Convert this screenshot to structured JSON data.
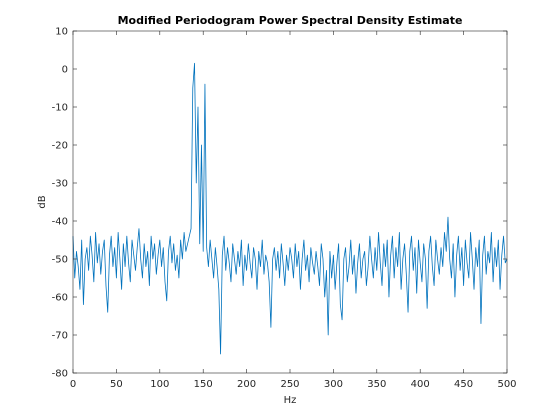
{
  "chart_data": {
    "type": "line",
    "title": "Modified Periodogram Power Spectral Density Estimate",
    "xlabel": "Hz",
    "ylabel": "dB",
    "color": "#0072bd",
    "xlim": [
      0,
      500
    ],
    "xticks": [
      0,
      50,
      100,
      150,
      200,
      250,
      300,
      350,
      400,
      450,
      500
    ],
    "ylim": [
      -80,
      10
    ],
    "yticks": [
      -80,
      -70,
      -60,
      -50,
      -40,
      -30,
      -20,
      -10,
      0,
      10
    ],
    "x": [
      0,
      2,
      4,
      6,
      8,
      10,
      12,
      14,
      16,
      18,
      20,
      22,
      24,
      26,
      28,
      30,
      32,
      34,
      36,
      38,
      40,
      42,
      44,
      46,
      48,
      50,
      52,
      54,
      56,
      58,
      60,
      62,
      64,
      66,
      68,
      70,
      72,
      74,
      76,
      78,
      80,
      82,
      84,
      86,
      88,
      90,
      92,
      94,
      96,
      98,
      100,
      102,
      104,
      106,
      108,
      110,
      112,
      114,
      116,
      118,
      120,
      122,
      124,
      126,
      128,
      130,
      132,
      134,
      136,
      138,
      140,
      142,
      144,
      146,
      148,
      150,
      152,
      154,
      156,
      158,
      160,
      162,
      164,
      166,
      168,
      170,
      172,
      174,
      176,
      178,
      180,
      182,
      184,
      186,
      188,
      190,
      192,
      194,
      196,
      198,
      200,
      202,
      204,
      206,
      208,
      210,
      212,
      214,
      216,
      218,
      220,
      222,
      224,
      226,
      228,
      230,
      232,
      234,
      236,
      238,
      240,
      242,
      244,
      246,
      248,
      250,
      252,
      254,
      256,
      258,
      260,
      262,
      264,
      266,
      268,
      270,
      272,
      274,
      276,
      278,
      280,
      282,
      284,
      286,
      288,
      290,
      292,
      294,
      296,
      298,
      300,
      302,
      304,
      306,
      308,
      310,
      312,
      314,
      316,
      318,
      320,
      322,
      324,
      326,
      328,
      330,
      332,
      334,
      336,
      338,
      340,
      342,
      344,
      346,
      348,
      350,
      352,
      354,
      356,
      358,
      360,
      362,
      364,
      366,
      368,
      370,
      372,
      374,
      376,
      378,
      380,
      382,
      384,
      386,
      388,
      390,
      392,
      394,
      396,
      398,
      400,
      402,
      404,
      406,
      408,
      410,
      412,
      414,
      416,
      418,
      420,
      422,
      424,
      426,
      428,
      430,
      432,
      434,
      436,
      438,
      440,
      442,
      444,
      446,
      448,
      450,
      452,
      454,
      456,
      458,
      460,
      462,
      464,
      466,
      468,
      470,
      472,
      474,
      476,
      478,
      480,
      482,
      484,
      486,
      488,
      490,
      492,
      494,
      496,
      498,
      500
    ],
    "values": [
      -44,
      -55,
      -48,
      -52,
      -58,
      -45,
      -62,
      -50,
      -47,
      -53,
      -44,
      -49,
      -56,
      -43,
      -51,
      -46,
      -54,
      -48,
      -45,
      -57,
      -64,
      -49,
      -44,
      -52,
      -47,
      -55,
      -43,
      -50,
      -58,
      -46,
      -52,
      -44,
      -51,
      -56,
      -45,
      -49,
      -53,
      -47,
      -42,
      -50,
      -55,
      -46,
      -52,
      -48,
      -57,
      -44,
      -50,
      -46,
      -54,
      -49,
      -45,
      -52,
      -47,
      -56,
      -61,
      -48,
      -44,
      -51,
      -46,
      -53,
      -49,
      -55,
      -45,
      -50,
      -43,
      -48,
      -46,
      -44,
      -42,
      -5,
      1.5,
      -30,
      -10,
      -46,
      -20,
      -48,
      -4,
      -47,
      -52,
      -45,
      -50,
      -55,
      -47,
      -52,
      -58,
      -75,
      -49,
      -44,
      -53,
      -47,
      -51,
      -56,
      -46,
      -50,
      -54,
      -48,
      -52,
      -45,
      -57,
      -49,
      -53,
      -46,
      -51,
      -55,
      -47,
      -50,
      -58,
      -48,
      -52,
      -45,
      -54,
      -49,
      -51,
      -56,
      -68,
      -50,
      -47,
      -53,
      -48,
      -55,
      -46,
      -51,
      -57,
      -49,
      -53,
      -47,
      -50,
      -55,
      -46,
      -52,
      -48,
      -58,
      -50,
      -45,
      -53,
      -49,
      -56,
      -47,
      -51,
      -54,
      -48,
      -52,
      -57,
      -46,
      -50,
      -60,
      -53,
      -70,
      -48,
      -55,
      -49,
      -58,
      -51,
      -46,
      -62,
      -66,
      -50,
      -47,
      -56,
      -52,
      -45,
      -54,
      -49,
      -59,
      -51,
      -46,
      -55,
      -50,
      -48,
      -57,
      -52,
      -44,
      -50,
      -55,
      -47,
      -53,
      -43,
      -51,
      -57,
      -46,
      -52,
      -45,
      -60,
      -49,
      -44,
      -55,
      -47,
      -52,
      -43,
      -58,
      -50,
      -46,
      -54,
      -64,
      -48,
      -44,
      -53,
      -47,
      -59,
      -45,
      -51,
      -56,
      -46,
      -50,
      -63,
      -48,
      -44,
      -52,
      -57,
      -45,
      -50,
      -54,
      -47,
      -52,
      -43,
      -48,
      -39,
      -50,
      -55,
      -46,
      -60,
      -49,
      -44,
      -53,
      -47,
      -57,
      -45,
      -51,
      -55,
      -43,
      -50,
      -58,
      -47,
      -52,
      -45,
      -67,
      -49,
      -44,
      -54,
      -48,
      -51,
      -43,
      -56,
      -47,
      -52,
      -45,
      -58,
      -49,
      -44,
      -51,
      -50
    ]
  }
}
